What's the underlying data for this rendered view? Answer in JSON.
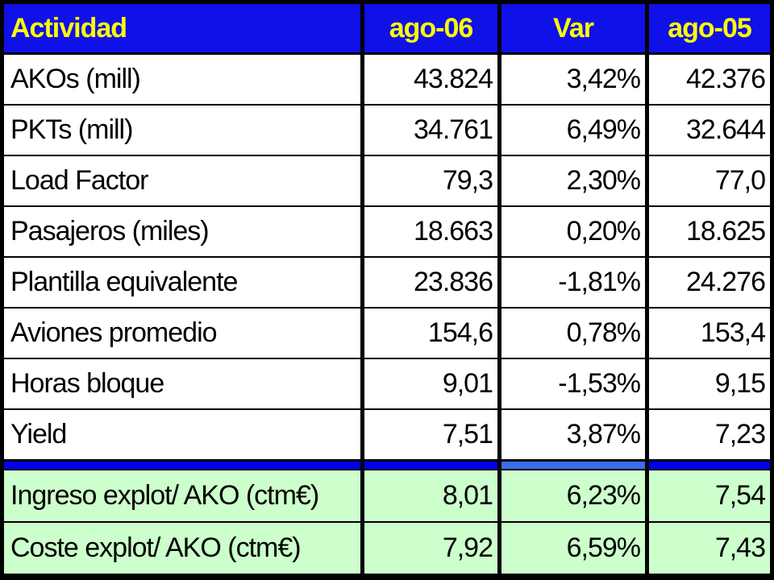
{
  "table": {
    "header": [
      "Actividad",
      "ago-06",
      "Var",
      "ago-05"
    ],
    "rows": [
      [
        "AKOs (mill)",
        "43.824",
        "3,42%",
        "42.376"
      ],
      [
        "PKTs (mill)",
        "34.761",
        "6,49%",
        "32.644"
      ],
      [
        "Load Factor",
        "79,3",
        "2,30%",
        "77,0"
      ],
      [
        "Pasajeros (miles)",
        "18.663",
        "0,20%",
        "18.625"
      ],
      [
        "Plantilla equivalente",
        "23.836",
        "-1,81%",
        "24.276"
      ],
      [
        "Aviones promedio",
        "154,6",
        "0,78%",
        "153,4"
      ],
      [
        "Horas bloque",
        "9,01",
        "-1,53%",
        "9,15"
      ],
      [
        "Yield",
        "7,51",
        "3,87%",
        "7,23"
      ]
    ],
    "highlight_rows": [
      [
        "Ingreso explot/ AKO (ctm€)",
        "8,01",
        "6,23%",
        "7,54"
      ],
      [
        "Coste explot/ AKO (ctm€)",
        "7,92",
        "6,59%",
        "7,43"
      ]
    ]
  }
}
